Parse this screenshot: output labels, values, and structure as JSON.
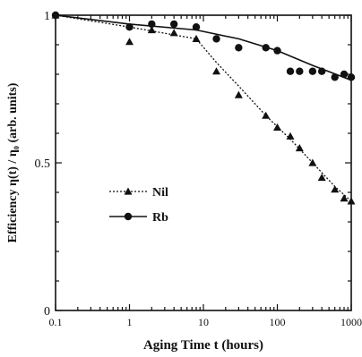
{
  "chart_data": {
    "type": "scatter",
    "xlabel": "Aging Time t (hours)",
    "ylabel": "Efficiency η(t) / η₀ (arb. units)",
    "xscale": "log",
    "xlim": [
      0.1,
      1000
    ],
    "ylim": [
      0,
      1
    ],
    "x_ticks": [
      "0.1",
      "1",
      "10",
      "100",
      "1000"
    ],
    "y_ticks": [
      "0",
      "0.5",
      "1"
    ],
    "grid": false,
    "legend_position": "middle-left",
    "series": [
      {
        "name": "Nil",
        "marker": "triangle",
        "line_style": "dotted",
        "color": "#111111",
        "points": [
          [
            0.1,
            1.0
          ],
          [
            1.0,
            0.91
          ],
          [
            2.0,
            0.95
          ],
          [
            4.0,
            0.94
          ],
          [
            8.0,
            0.92
          ],
          [
            15.0,
            0.81
          ],
          [
            30.0,
            0.73
          ],
          [
            70.0,
            0.66
          ],
          [
            100.0,
            0.62
          ],
          [
            150.0,
            0.59
          ],
          [
            200.0,
            0.55
          ],
          [
            300.0,
            0.5
          ],
          [
            400.0,
            0.45
          ],
          [
            600.0,
            0.41
          ],
          [
            800.0,
            0.38
          ],
          [
            1000.0,
            0.37
          ]
        ],
        "trend": [
          [
            0.1,
            1.0
          ],
          [
            1.0,
            0.96
          ],
          [
            8.0,
            0.92
          ],
          [
            15.0,
            0.84
          ],
          [
            30.0,
            0.76
          ],
          [
            70.0,
            0.66
          ],
          [
            150.0,
            0.58
          ],
          [
            300.0,
            0.5
          ],
          [
            600.0,
            0.42
          ],
          [
            1000.0,
            0.37
          ]
        ]
      },
      {
        "name": "Rb",
        "marker": "circle",
        "line_style": "solid",
        "color": "#111111",
        "points": [
          [
            0.1,
            1.0
          ],
          [
            1.0,
            0.96
          ],
          [
            2.0,
            0.97
          ],
          [
            4.0,
            0.97
          ],
          [
            8.0,
            0.96
          ],
          [
            15.0,
            0.92
          ],
          [
            30.0,
            0.89
          ],
          [
            70.0,
            0.89
          ],
          [
            100.0,
            0.88
          ],
          [
            150.0,
            0.81
          ],
          [
            200.0,
            0.81
          ],
          [
            300.0,
            0.81
          ],
          [
            400.0,
            0.81
          ],
          [
            600.0,
            0.79
          ],
          [
            800.0,
            0.8
          ],
          [
            1000.0,
            0.79
          ]
        ],
        "trend": [
          [
            0.1,
            1.0
          ],
          [
            1.0,
            0.97
          ],
          [
            8.0,
            0.95
          ],
          [
            30.0,
            0.92
          ],
          [
            100.0,
            0.88
          ],
          [
            300.0,
            0.83
          ],
          [
            1000.0,
            0.78
          ]
        ]
      }
    ]
  }
}
